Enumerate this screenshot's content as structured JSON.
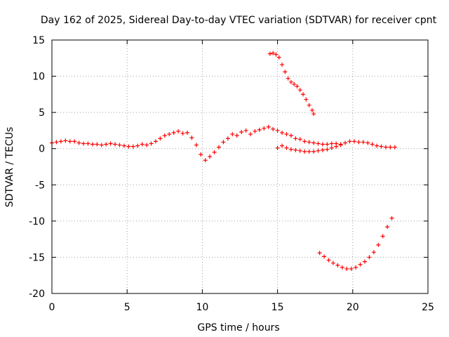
{
  "chart_data": {
    "type": "scatter",
    "title": "Day 162 of 2025, Sidereal Day-to-day VTEC variation (SDTVAR) for receiver cpnt",
    "xlabel": "GPS time / hours",
    "ylabel": "SDTVAR / TECUs",
    "xlim": [
      0,
      25
    ],
    "ylim": [
      -20,
      15
    ],
    "xticks": [
      0,
      5,
      10,
      15,
      20,
      25
    ],
    "yticks": [
      15,
      10,
      5,
      0,
      -5,
      -10,
      -15,
      -20
    ],
    "xtick_labels": [
      "0",
      "5",
      "10",
      "15",
      "20",
      "25"
    ],
    "ytick_labels": [
      "15",
      "10",
      "5",
      "0",
      "-5",
      "-10",
      "-15",
      "-20"
    ],
    "grid": true,
    "marker": "+",
    "series_color": "#ff0000",
    "series": [
      {
        "name": "main-trace",
        "x": [
          0.0,
          0.3,
          0.6,
          0.9,
          1.2,
          1.5,
          1.8,
          2.1,
          2.4,
          2.7,
          3.0,
          3.3,
          3.6,
          3.9,
          4.2,
          4.5,
          4.8,
          5.1,
          5.4,
          5.7,
          6.0,
          6.3,
          6.6,
          6.9,
          7.2,
          7.5,
          7.8,
          8.1,
          8.4,
          8.7,
          9.0,
          9.3,
          9.6,
          9.9,
          10.2,
          10.5,
          10.8,
          11.1,
          11.4,
          11.7,
          12.0,
          12.3,
          12.6,
          12.9,
          13.2,
          13.5,
          13.8,
          14.1,
          14.4,
          14.7,
          15.0,
          15.3,
          15.6,
          15.9,
          16.2,
          16.5,
          16.8,
          17.1,
          17.4,
          17.7,
          18.0,
          18.3,
          18.6,
          18.9,
          19.2,
          19.5,
          19.8,
          20.1,
          20.4,
          20.7,
          21.0,
          21.3,
          21.6,
          21.9,
          22.2,
          22.5,
          22.8
        ],
        "y": [
          0.8,
          0.9,
          1.0,
          1.1,
          1.0,
          1.0,
          0.8,
          0.7,
          0.7,
          0.6,
          0.6,
          0.5,
          0.6,
          0.7,
          0.6,
          0.5,
          0.4,
          0.3,
          0.3,
          0.4,
          0.6,
          0.5,
          0.7,
          1.0,
          1.4,
          1.8,
          2.0,
          2.2,
          2.4,
          2.1,
          2.2,
          1.5,
          0.5,
          -0.8,
          -1.6,
          -1.1,
          -0.5,
          0.2,
          0.9,
          1.4,
          2.0,
          1.8,
          2.3,
          2.5,
          2.0,
          2.4,
          2.6,
          2.8,
          3.0,
          2.7,
          2.5,
          2.2,
          2.0,
          1.8,
          1.4,
          1.3,
          1.0,
          0.9,
          0.8,
          0.7,
          0.6,
          0.6,
          0.7,
          0.7,
          0.6,
          0.8,
          1.0,
          1.0,
          0.9,
          0.9,
          0.8,
          0.6,
          0.4,
          0.3,
          0.2,
          0.2,
          0.2
        ]
      },
      {
        "name": "lower-branch",
        "x": [
          15.0,
          15.3,
          15.6,
          15.9,
          16.2,
          16.5,
          16.8,
          17.1,
          17.4,
          17.7,
          18.0,
          18.3,
          18.6,
          18.9,
          19.2
        ],
        "y": [
          0.1,
          0.4,
          0.1,
          -0.1,
          -0.2,
          -0.3,
          -0.4,
          -0.4,
          -0.4,
          -0.3,
          -0.2,
          -0.1,
          0.1,
          0.3,
          0.5
        ]
      },
      {
        "name": "upper-outlier",
        "x": [
          14.5,
          14.7,
          14.9,
          15.1,
          15.3,
          15.5,
          15.7,
          15.9,
          16.1,
          16.3,
          16.5,
          16.7,
          16.9,
          17.1,
          17.3,
          17.4
        ],
        "y": [
          13.1,
          13.2,
          13.0,
          12.6,
          11.6,
          10.6,
          9.7,
          9.2,
          8.9,
          8.6,
          8.1,
          7.5,
          6.8,
          6.0,
          5.3,
          4.8
        ]
      },
      {
        "name": "lower-outlier",
        "x": [
          17.8,
          18.1,
          18.4,
          18.7,
          19.0,
          19.3,
          19.6,
          19.9,
          20.2,
          20.5,
          20.8,
          21.1,
          21.4,
          21.7,
          22.0,
          22.3,
          22.6
        ],
        "y": [
          -14.4,
          -14.9,
          -15.4,
          -15.8,
          -16.1,
          -16.4,
          -16.6,
          -16.6,
          -16.4,
          -16.0,
          -15.6,
          -15.0,
          -14.3,
          -13.3,
          -12.1,
          -10.8,
          -9.6
        ]
      }
    ]
  }
}
